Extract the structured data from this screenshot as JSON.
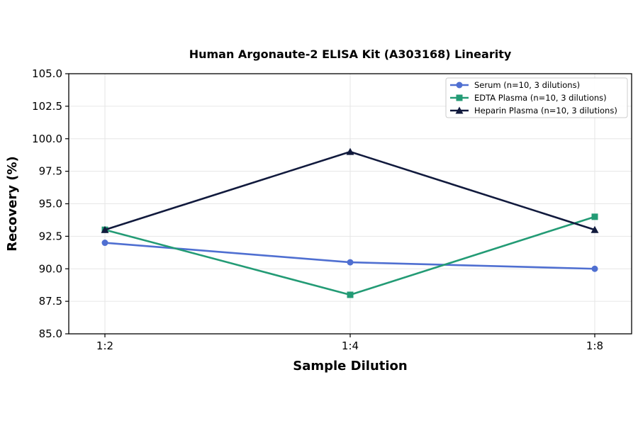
{
  "chart_data": {
    "type": "line",
    "title": "Human Argonaute-2 ELISA Kit (A303168) Linearity",
    "xlabel": "Sample Dilution",
    "ylabel": "Recovery (%)",
    "categories": [
      "1:2",
      "1:4",
      "1:8"
    ],
    "ylim": [
      85.0,
      105.0
    ],
    "yticks": [
      "85.0",
      "87.5",
      "90.0",
      "92.5",
      "95.0",
      "97.5",
      "100.0",
      "102.5",
      "105.0"
    ],
    "grid": true,
    "legend_position": "top-right",
    "series": [
      {
        "name": "Serum (n=10, 3 dilutions)",
        "values": [
          92.0,
          90.5,
          90.0
        ],
        "color": "#4f6fd1",
        "marker": "circle"
      },
      {
        "name": "EDTA Plasma (n=10, 3 dilutions)",
        "values": [
          93.0,
          88.0,
          94.0
        ],
        "color": "#239b75",
        "marker": "square"
      },
      {
        "name": "Heparin Plasma (n=10, 3 dilutions)",
        "values": [
          93.0,
          99.0,
          93.0
        ],
        "color": "#111a3d",
        "marker": "triangle"
      }
    ]
  }
}
